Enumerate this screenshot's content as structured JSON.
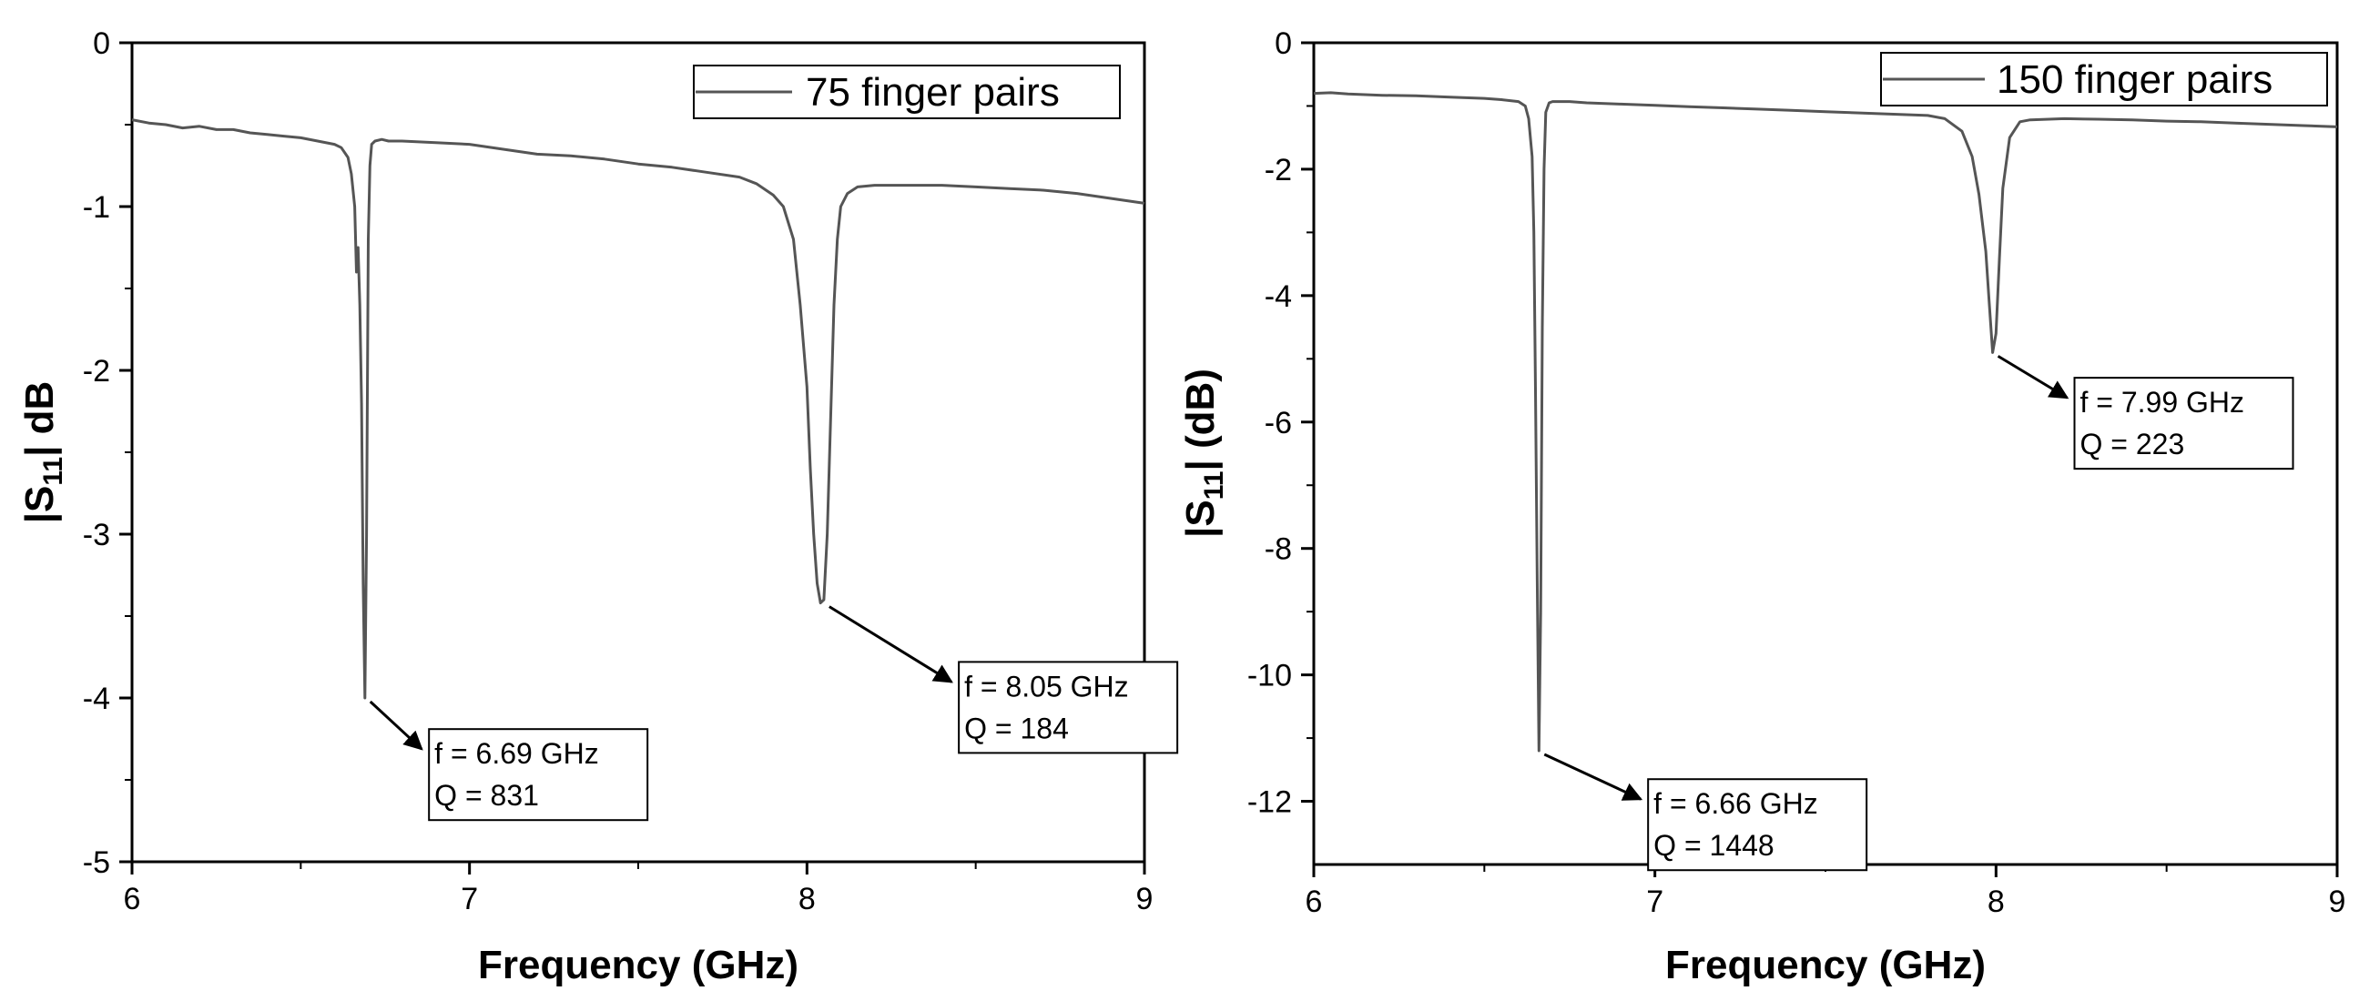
{
  "chart_data": [
    {
      "type": "line",
      "xlabel": "Frequency (GHz)",
      "ylabel_main": "|S",
      "ylabel_sub": "11",
      "ylabel_rest": "| dB",
      "xlim": [
        6,
        9
      ],
      "ylim": [
        -5,
        0
      ],
      "xticks": [
        6,
        7,
        8,
        9
      ],
      "yticks": [
        0,
        -1,
        -2,
        -3,
        -4,
        -5
      ],
      "legend_position": "top-right",
      "series": [
        {
          "name": "75 finger pairs",
          "color": "#555555",
          "x": [
            6.0,
            6.05,
            6.1,
            6.15,
            6.2,
            6.25,
            6.3,
            6.35,
            6.4,
            6.45,
            6.5,
            6.55,
            6.6,
            6.62,
            6.64,
            6.65,
            6.66,
            6.665,
            6.67,
            6.675,
            6.68,
            6.685,
            6.69,
            6.695,
            6.7,
            6.705,
            6.71,
            6.72,
            6.74,
            6.76,
            6.8,
            6.9,
            7.0,
            7.1,
            7.2,
            7.3,
            7.4,
            7.5,
            7.6,
            7.7,
            7.8,
            7.85,
            7.9,
            7.93,
            7.96,
            7.98,
            8.0,
            8.01,
            8.02,
            8.03,
            8.04,
            8.05,
            8.06,
            8.07,
            8.08,
            8.09,
            8.1,
            8.12,
            8.15,
            8.2,
            8.3,
            8.4,
            8.5,
            8.6,
            8.7,
            8.8,
            8.9,
            9.0
          ],
          "y": [
            -0.47,
            -0.49,
            -0.5,
            -0.52,
            -0.51,
            -0.53,
            -0.53,
            -0.55,
            -0.56,
            -0.57,
            -0.58,
            -0.6,
            -0.62,
            -0.64,
            -0.7,
            -0.8,
            -1.0,
            -1.4,
            -1.25,
            -1.6,
            -2.2,
            -3.3,
            -4.0,
            -3.0,
            -1.2,
            -0.75,
            -0.62,
            -0.6,
            -0.59,
            -0.6,
            -0.6,
            -0.61,
            -0.62,
            -0.65,
            -0.68,
            -0.69,
            -0.71,
            -0.74,
            -0.76,
            -0.79,
            -0.82,
            -0.86,
            -0.93,
            -1.0,
            -1.2,
            -1.6,
            -2.1,
            -2.6,
            -3.0,
            -3.3,
            -3.42,
            -3.4,
            -3.0,
            -2.3,
            -1.6,
            -1.2,
            -1.0,
            -0.92,
            -0.88,
            -0.87,
            -0.87,
            -0.87,
            -0.88,
            -0.89,
            -0.9,
            -0.92,
            -0.95,
            -0.98
          ]
        }
      ],
      "annotations": [
        {
          "line1": "f = 6.69 GHz",
          "line2": "Q = 831",
          "point_x": 6.69,
          "point_y": -4.0,
          "box_x": 6.88,
          "box_y": -4.19
        },
        {
          "line1": "f = 8.05 GHz",
          "line2": "Q = 184",
          "point_x": 8.05,
          "point_y": -3.42,
          "box_x": 8.45,
          "box_y": -3.78
        }
      ]
    },
    {
      "type": "line",
      "xlabel": "Frequency (GHz)",
      "ylabel_main": "|S",
      "ylabel_sub": "11",
      "ylabel_rest": "| (dB)",
      "xlim": [
        6,
        9
      ],
      "ylim": [
        -13,
        0
      ],
      "xticks": [
        6,
        7,
        8,
        9
      ],
      "yticks": [
        0,
        -2,
        -4,
        -6,
        -8,
        -10,
        -12
      ],
      "legend_position": "top-right",
      "series": [
        {
          "name": "150 finger pairs",
          "color": "#555555",
          "x": [
            6.0,
            6.05,
            6.1,
            6.15,
            6.2,
            6.3,
            6.4,
            6.5,
            6.55,
            6.6,
            6.62,
            6.63,
            6.64,
            6.645,
            6.65,
            6.655,
            6.66,
            6.665,
            6.67,
            6.675,
            6.68,
            6.69,
            6.7,
            6.75,
            6.8,
            6.9,
            7.0,
            7.1,
            7.2,
            7.3,
            7.4,
            7.5,
            7.6,
            7.7,
            7.8,
            7.85,
            7.9,
            7.93,
            7.95,
            7.97,
            7.98,
            7.99,
            8.0,
            8.01,
            8.02,
            8.04,
            8.07,
            8.1,
            8.2,
            8.3,
            8.4,
            8.5,
            8.6,
            8.7,
            8.8,
            8.9,
            9.0
          ],
          "y": [
            -0.8,
            -0.79,
            -0.81,
            -0.82,
            -0.83,
            -0.84,
            -0.86,
            -0.88,
            -0.9,
            -0.93,
            -1.0,
            -1.2,
            -1.8,
            -3.0,
            -5.5,
            -8.5,
            -11.2,
            -9.0,
            -4.5,
            -2.0,
            -1.1,
            -0.95,
            -0.93,
            -0.93,
            -0.95,
            -0.97,
            -0.99,
            -1.01,
            -1.03,
            -1.05,
            -1.07,
            -1.09,
            -1.11,
            -1.13,
            -1.15,
            -1.2,
            -1.4,
            -1.8,
            -2.4,
            -3.3,
            -4.1,
            -4.9,
            -4.6,
            -3.4,
            -2.3,
            -1.5,
            -1.25,
            -1.22,
            -1.2,
            -1.21,
            -1.22,
            -1.24,
            -1.25,
            -1.27,
            -1.29,
            -1.31,
            -1.33
          ]
        }
      ],
      "annotations": [
        {
          "line1": "f = 6.66 GHz",
          "line2": "Q = 1448",
          "point_x": 6.66,
          "point_y": -11.2,
          "box_x": 6.98,
          "box_y": -11.65
        },
        {
          "line1": "f = 7.99 GHz",
          "line2": "Q = 223",
          "point_x": 7.99,
          "point_y": -4.9,
          "box_x": 8.23,
          "box_y": -5.3
        }
      ]
    }
  ]
}
